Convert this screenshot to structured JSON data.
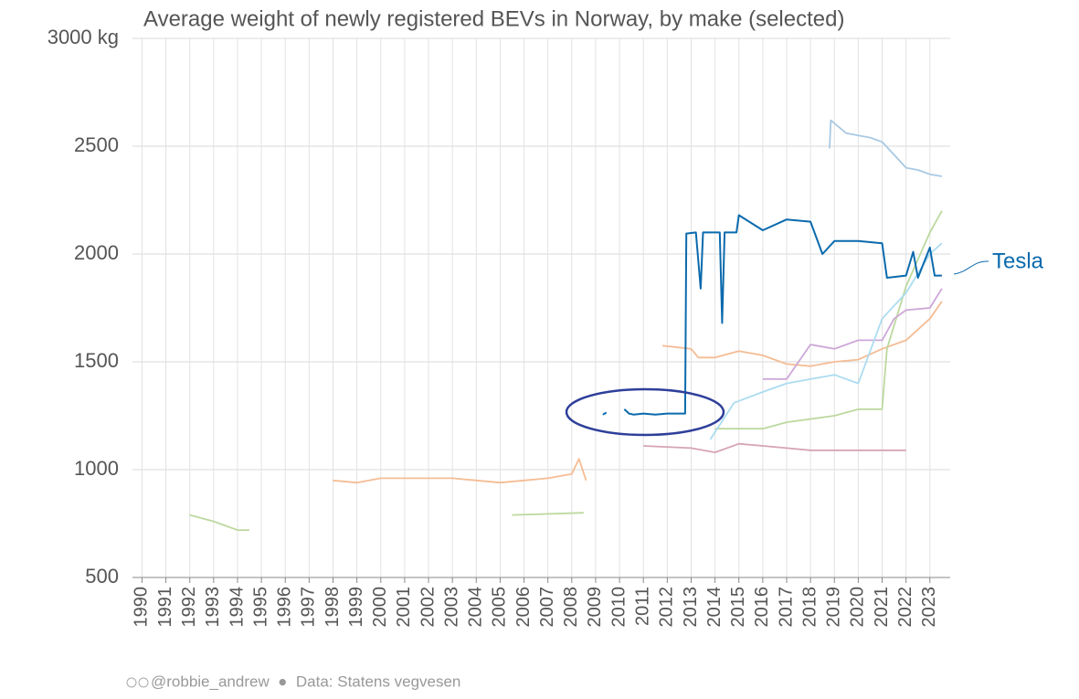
{
  "chart_data": {
    "type": "line",
    "title": "Average weight of newly registered BEVs in Norway, by make (selected)",
    "source": "@robbie_andrew  ●  Data: Statens vegvesen",
    "xlim": [
      1989.6,
      2023.85
    ],
    "xticks": [
      1990,
      1991,
      1992,
      1993,
      1994,
      1995,
      1996,
      1997,
      1998,
      1999,
      2000,
      2001,
      2002,
      2003,
      2004,
      2005,
      2006,
      2007,
      2008,
      2009,
      2010,
      2011,
      2012,
      2013,
      2014,
      2015,
      2016,
      2017,
      2018,
      2019,
      2020,
      2021,
      2022,
      2023
    ],
    "ylim": [
      500,
      3000
    ],
    "yticks": [
      500,
      1000,
      1500,
      2000,
      2500,
      {
        "value": 3000,
        "label": "3000 kg"
      }
    ],
    "grid": true,
    "series": [
      {
        "color": "#a9c9e3",
        "x": [
          2018.8,
          2018.85,
          2019.5,
          2020,
          2020.5,
          2021,
          2021.5,
          2022,
          2022.5,
          2023,
          2023.5
        ],
        "values": [
          2490,
          2620,
          2560,
          2550,
          2540,
          2520,
          2460,
          2400,
          2390,
          2370,
          2360
        ]
      },
      {
        "color": "#f5bc94",
        "x": [
          1998,
          1999,
          2000,
          2003,
          2005,
          2006,
          2007,
          2008,
          2008.3,
          2008.6,
          null,
          2011.8,
          2013,
          2013.3,
          2014,
          2015,
          2016,
          2017,
          2018,
          2019,
          2020,
          2021,
          2022,
          2023,
          2023.5
        ],
        "values": [
          950,
          940,
          960,
          960,
          940,
          950,
          960,
          980,
          1050,
          950,
          null,
          1575,
          1560,
          1520,
          1520,
          1550,
          1530,
          1490,
          1480,
          1500,
          1510,
          1560,
          1600,
          1700,
          1780
        ]
      },
      {
        "color": "#bcd99f",
        "x": [
          1992,
          1993,
          1994,
          1994.5,
          null,
          2005.5,
          2008.5,
          null,
          2014,
          2016,
          2017,
          2019,
          2020,
          2021,
          2021.2,
          2022,
          2023,
          2023.5
        ],
        "values": [
          790,
          760,
          720,
          720,
          null,
          790,
          800,
          null,
          1190,
          1190,
          1220,
          1250,
          1280,
          1280,
          1560,
          1850,
          2100,
          2200
        ]
      },
      {
        "color": "#cda7d8",
        "x": [
          2016,
          2017,
          2018,
          2019,
          2020,
          2021,
          2021.5,
          2022,
          2023,
          2023.5
        ],
        "values": [
          1420,
          1420,
          1580,
          1560,
          1600,
          1600,
          1700,
          1740,
          1750,
          1840
        ]
      },
      {
        "color": "#d6a4b4",
        "x": [
          2011,
          2013,
          2014,
          2015,
          2016,
          2017,
          2018,
          2022
        ],
        "values": [
          1110,
          1100,
          1080,
          1120,
          1110,
          1100,
          1090,
          1090
        ]
      },
      {
        "color": "#acdcf0",
        "x": [
          2013.8,
          2014.8,
          2016,
          2017,
          2018,
          2019,
          2020,
          2021,
          2022,
          2023,
          2023.5
        ],
        "values": [
          1140,
          1310,
          1360,
          1400,
          1420,
          1440,
          1400,
          1700,
          1820,
          2000,
          2050
        ]
      },
      {
        "name": "Tesla",
        "color": "#0b6aad",
        "x": [
          2009.3,
          2009.45,
          null,
          2010.2,
          2010.4,
          2010.6,
          2011,
          2011.5,
          2012,
          2012.5,
          2012.75,
          2012.8,
          2013.2,
          2013.4,
          2013.5,
          2014.2,
          2014.3,
          2014.4,
          2014.9,
          2015,
          2016,
          2017,
          2018,
          2018.5,
          2019,
          2020,
          2021,
          2021.2,
          2022,
          2022.3,
          2022.5,
          2023,
          2023.2,
          2023.5
        ],
        "values": [
          1255,
          1265,
          null,
          1280,
          1260,
          1255,
          1260,
          1255,
          1260,
          1260,
          1260,
          2095,
          2100,
          1840,
          2100,
          2100,
          1680,
          2100,
          2100,
          2180,
          2110,
          2160,
          2150,
          2000,
          2060,
          2060,
          2050,
          1890,
          1900,
          2010,
          1890,
          2030,
          1900,
          1900
        ]
      }
    ]
  }
}
